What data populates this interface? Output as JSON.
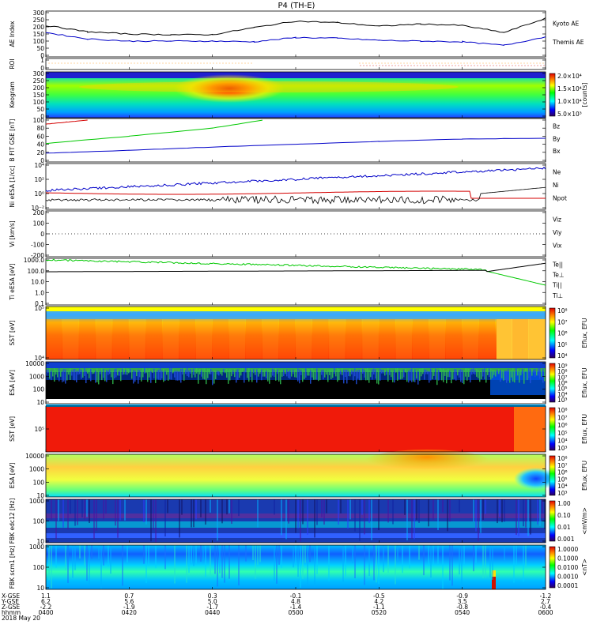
{
  "title": "P4 (TH-E)",
  "colors": {
    "black": "#000000",
    "red": "#d40000",
    "green": "#00c800",
    "blue": "#0000c8",
    "orange": "#ff8c00"
  },
  "panels": [
    {
      "id": "ae",
      "ylabel": "AE Index",
      "yticks": [
        "300",
        "250",
        "200",
        "150",
        "100",
        "50",
        "0"
      ],
      "legend": [
        {
          "text": "Kyoto AE",
          "color": "blue"
        },
        {
          "text": "Themis AE",
          "color": "black"
        }
      ]
    },
    {
      "id": "roi",
      "ylabel": "ROI",
      "yticks": [
        "1",
        "0"
      ],
      "legend": []
    },
    {
      "id": "keo",
      "ylabel": "Keogram",
      "yticks": [
        "300",
        "250",
        "200",
        "150",
        "100",
        "50",
        "0"
      ],
      "colorbar": [
        "2.0×10⁴",
        "1.5×10⁴",
        "1.0×10⁴",
        "5.0×10³"
      ],
      "cbar_label": "[counts]",
      "legend": []
    },
    {
      "id": "bfield",
      "ylabel": "B FIT GSE [nT]",
      "yticks": [
        "100",
        "80",
        "60",
        "40",
        "20",
        "0"
      ],
      "legend": [
        {
          "text": "Bz",
          "color": "red"
        },
        {
          "text": "By",
          "color": "green"
        },
        {
          "text": "Bx",
          "color": "blue"
        }
      ]
    },
    {
      "id": "density",
      "ylabel": "Ni eESA [1/cc]",
      "yticks": [
        "10⁴",
        "10²",
        "10⁰",
        "10⁻²"
      ],
      "legend": [
        {
          "text": "Ne",
          "color": "red"
        },
        {
          "text": "Ni",
          "color": "black"
        },
        {
          "text": "Npot",
          "color": "blue"
        }
      ]
    },
    {
      "id": "velocity",
      "ylabel": "Vi [km/s]",
      "yticks": [
        "200",
        "100",
        "0",
        "-100",
        "-200"
      ],
      "legend": [
        {
          "text": "Viz",
          "color": "red"
        },
        {
          "text": "Viy",
          "color": "green"
        },
        {
          "text": "Vix",
          "color": "blue"
        }
      ]
    },
    {
      "id": "temp",
      "ylabel": "Ti eESA [eV]",
      "yticks": [
        "1000.0",
        "100.0",
        "10.0",
        "1.0",
        "0.1"
      ],
      "legend": [
        {
          "text": "Te||",
          "color": "black"
        },
        {
          "text": "Te⊥",
          "color": "red"
        },
        {
          "text": "Ti||",
          "color": "green"
        },
        {
          "text": "Ti⊥",
          "color": "blue"
        }
      ]
    },
    {
      "id": "sst_e",
      "ylabel": "SST [eV]",
      "yticks": [
        "10⁵",
        "10⁴"
      ],
      "colorbar": [
        "10⁸",
        "10⁷",
        "10⁶",
        "10⁵",
        "10⁴"
      ],
      "cbar_label": "Eflux, EFU",
      "legend": []
    },
    {
      "id": "esa_e",
      "ylabel": "ESA [eV]",
      "yticks": [
        "10000",
        "1000",
        "100",
        "10"
      ],
      "colorbar": [
        "10⁹",
        "10⁸",
        "10⁷",
        "10⁶",
        "10⁵",
        "10⁴",
        "10³"
      ],
      "cbar_label": "Eflux, EFU",
      "legend": []
    },
    {
      "id": "sst_i",
      "ylabel": "SST [eV]",
      "yticks": [
        "10⁵"
      ],
      "colorbar": [
        "10⁸",
        "10⁷",
        "10⁶",
        "10⁵",
        "10⁴",
        "10³"
      ],
      "cbar_label": "Eflux, EFU",
      "legend": []
    },
    {
      "id": "esa_i",
      "ylabel": "ESA [eV]",
      "yticks": [
        "10000",
        "1000",
        "100",
        "10"
      ],
      "colorbar": [
        "10⁸",
        "10⁷",
        "10⁶",
        "10⁵",
        "10⁴",
        "10³"
      ],
      "cbar_label": "Eflux, EFU",
      "legend": []
    },
    {
      "id": "fbk_e",
      "ylabel": "FBK edc12 [Hz]",
      "yticks": [
        "1000",
        "100",
        "10"
      ],
      "colorbar": [
        "1.00",
        "0.10",
        "0.01",
        "0.001"
      ],
      "cbar_label": "<mV/m>",
      "legend": []
    },
    {
      "id": "fbk_b",
      "ylabel": "FBK scm1 [Hz]",
      "yticks": [
        "1000",
        "100",
        "10"
      ],
      "colorbar": [
        "1.0000",
        "0.1000",
        "0.0100",
        "0.0010",
        "0.0001"
      ],
      "cbar_label": "<nT>",
      "legend": []
    }
  ],
  "xaxis": {
    "rows": [
      {
        "label": "X-GSE",
        "values": [
          "1.1",
          "0.7",
          "0.3",
          "-0.1",
          "-0.5",
          "-0.9",
          "-1.2"
        ]
      },
      {
        "label": "Y-GSE",
        "values": [
          "6.2",
          "5.6",
          "5.0",
          "4.8",
          "4.2",
          "3.5",
          "2.7"
        ]
      },
      {
        "label": "Z-GSE",
        "values": [
          "-2.2",
          "-1.9",
          "-1.7",
          "-1.4",
          "-1.1",
          "-0.8",
          "-0.4"
        ]
      },
      {
        "label": "hhmm",
        "values": [
          "0400",
          "0420",
          "0440",
          "0500",
          "0520",
          "0540",
          "0600"
        ]
      }
    ],
    "date": "2018 May 20"
  },
  "chart_data": {
    "type": "line",
    "title": "P4 (TH-E)",
    "x_time_labels": [
      "0400",
      "0420",
      "0440",
      "0500",
      "0520",
      "0540",
      "0600"
    ],
    "date": "2018 May 20",
    "ae_index": {
      "ylim": [
        0,
        300
      ],
      "series": [
        {
          "name": "Kyoto AE",
          "color": "blue",
          "x": [
            0,
            10,
            20,
            30,
            40,
            50,
            60,
            70,
            80,
            90,
            100,
            110,
            120
          ],
          "values": [
            160,
            115,
            100,
            100,
            100,
            95,
            125,
            120,
            105,
            100,
            95,
            70,
            130
          ]
        },
        {
          "name": "Themis AE",
          "color": "black",
          "x": [
            0,
            10,
            20,
            30,
            40,
            50,
            60,
            70,
            80,
            90,
            100,
            110,
            120
          ],
          "values": [
            210,
            165,
            150,
            145,
            145,
            195,
            240,
            230,
            205,
            220,
            210,
            160,
            260
          ]
        }
      ]
    },
    "b_field": {
      "ylim": [
        0,
        100
      ],
      "series": [
        {
          "name": "Bz",
          "color": "red",
          "x": [
            0,
            5,
            10
          ],
          "values": [
            90,
            95,
            100
          ]
        },
        {
          "name": "By",
          "color": "green",
          "x": [
            0,
            20,
            40,
            52
          ],
          "values": [
            42,
            60,
            80,
            100
          ]
        },
        {
          "name": "Bx",
          "color": "blue",
          "x": [
            0,
            20,
            40,
            60,
            80,
            100,
            120
          ],
          "values": [
            18,
            25,
            33,
            40,
            47,
            53,
            55
          ]
        }
      ]
    },
    "velocity": {
      "ylim": [
        -200,
        200
      ]
    },
    "keogram": {
      "ylim": [
        0,
        300
      ],
      "zrange": [
        5000,
        20000
      ]
    }
  }
}
